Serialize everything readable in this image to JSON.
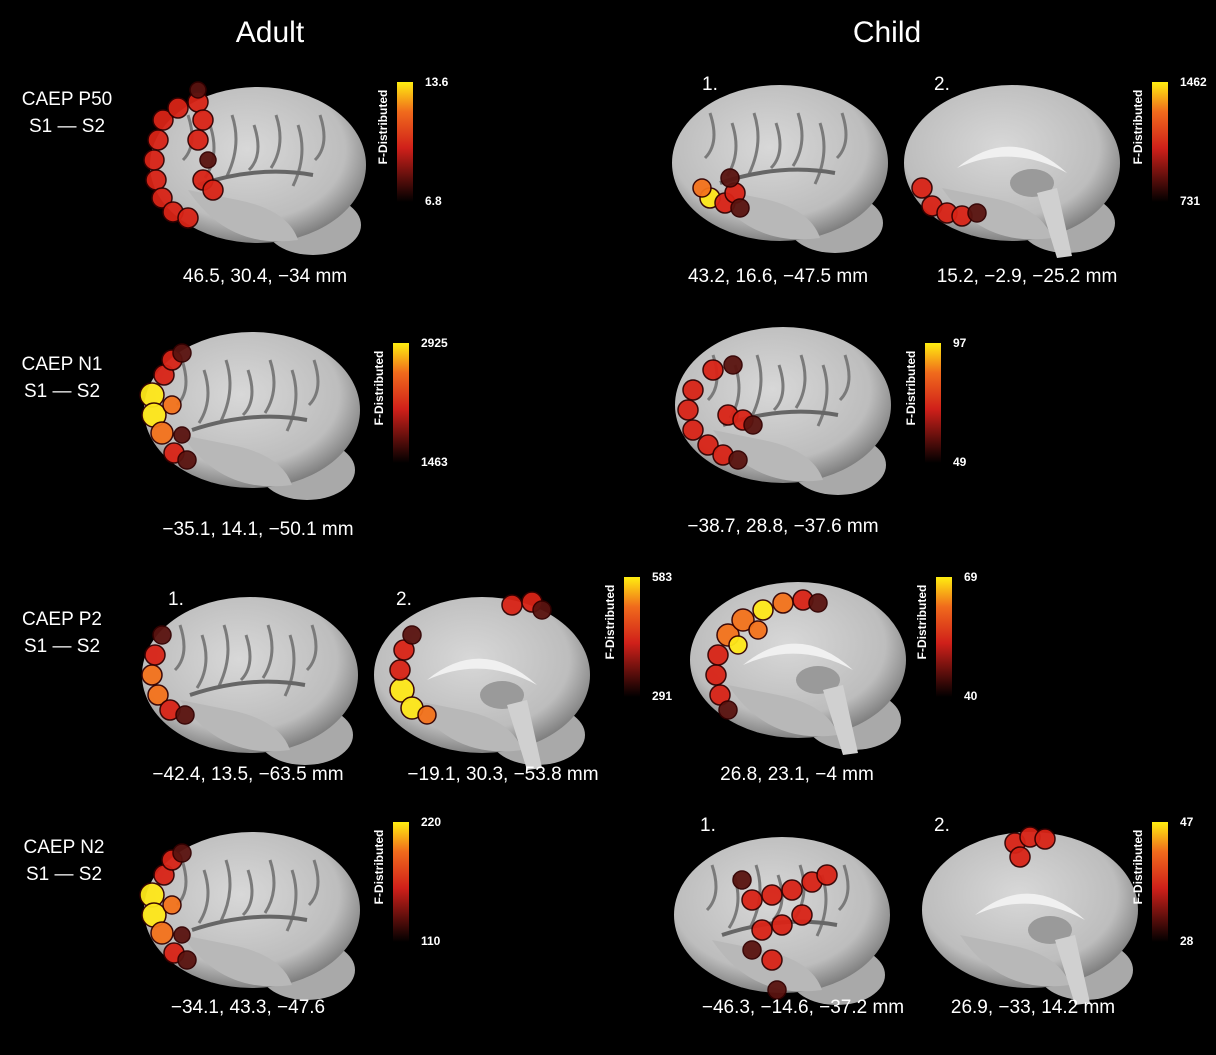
{
  "headers": [
    "Adult",
    "Child"
  ],
  "rows": [
    {
      "label": [
        "CAEP P50",
        "S1 — S2"
      ],
      "adult": {
        "panels": [
          {
            "coords": "46.5, 30.4, −34 mm"
          }
        ],
        "colorbar": {
          "title": "F-Distributed",
          "max": 13.6,
          "min": 6.8
        }
      },
      "child": {
        "panels": [
          {
            "number": "1.",
            "coords": "43.2, 16.6, −47.5 mm"
          },
          {
            "number": "2.",
            "coords": "15.2, −2.9, −25.2 mm"
          }
        ],
        "colorbar": {
          "title": "F-Distributed",
          "max": 1462,
          "min": 731
        }
      }
    },
    {
      "label": [
        "CAEP N1",
        "S1 — S2"
      ],
      "adult": {
        "panels": [
          {
            "coords": "−35.1, 14.1, −50.1 mm"
          }
        ],
        "colorbar": {
          "title": "F-Distributed",
          "max": 2925,
          "min": 1463
        }
      },
      "child": {
        "panels": [
          {
            "coords": "−38.7, 28.8, −37.6 mm"
          }
        ],
        "colorbar": {
          "title": "F-Distributed",
          "max": 97,
          "min": 49
        }
      }
    },
    {
      "label": [
        "CAEP P2",
        "S1 — S2"
      ],
      "adult": {
        "panels": [
          {
            "number": "1.",
            "coords": "−42.4, 13.5, −63.5 mm"
          },
          {
            "number": "2.",
            "coords": "−19.1, 30.3, −53.8 mm"
          }
        ],
        "colorbar": {
          "title": "F-Distributed",
          "max": 583,
          "min": 291
        }
      },
      "child": {
        "panels": [
          {
            "coords": "26.8, 23.1, −4 mm"
          }
        ],
        "colorbar": {
          "title": "F-Distributed",
          "max": 69,
          "min": 40
        }
      }
    },
    {
      "label": [
        "CAEP N2",
        "S1 — S2"
      ],
      "adult": {
        "panels": [
          {
            "coords": "−34.1, 43.3, −47.6"
          }
        ],
        "colorbar": {
          "title": "F-Distributed",
          "max": 220,
          "min": 110
        }
      },
      "child": {
        "panels": [
          {
            "number": "1.",
            "coords": "−46.3, −14.6, −37.2 mm"
          },
          {
            "number": "2.",
            "coords": "26.9, −33, 14.2 mm"
          }
        ],
        "colorbar": {
          "title": "F-Distributed",
          "max": 47,
          "min": 28
        }
      }
    }
  ]
}
